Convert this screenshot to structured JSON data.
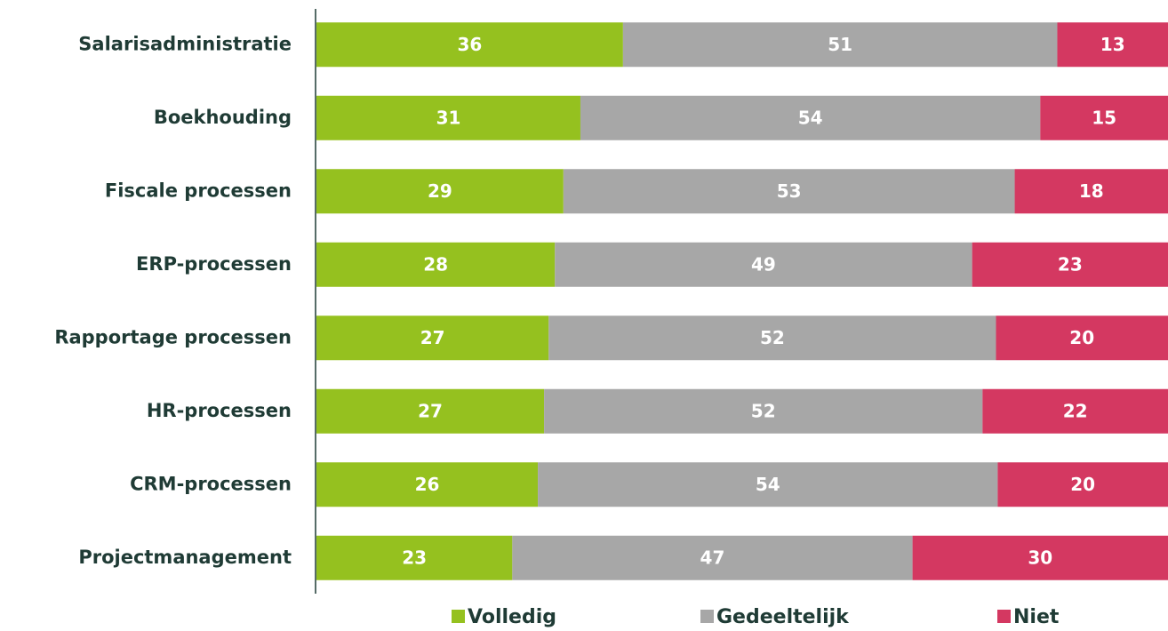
{
  "chart_data": {
    "type": "stacked-bar-100",
    "categories": [
      "Salarisadministratie",
      "Boekhouding",
      "Fiscale processen",
      "ERP-processen",
      "Rapportage processen",
      "HR-processen",
      "CRM-processen",
      "Projectmanagement"
    ],
    "series": [
      {
        "name": "Volledig",
        "color": "#95c11f",
        "values": [
          36,
          31,
          29,
          28,
          27,
          27,
          26,
          23
        ]
      },
      {
        "name": "Gedeeltelijk",
        "color": "#a7a7a7",
        "values": [
          51,
          54,
          53,
          49,
          52,
          52,
          54,
          47
        ]
      },
      {
        "name": "Niet",
        "color": "#d43861",
        "values": [
          13,
          15,
          18,
          23,
          20,
          22,
          20,
          30
        ]
      }
    ],
    "legend": "bottom"
  }
}
